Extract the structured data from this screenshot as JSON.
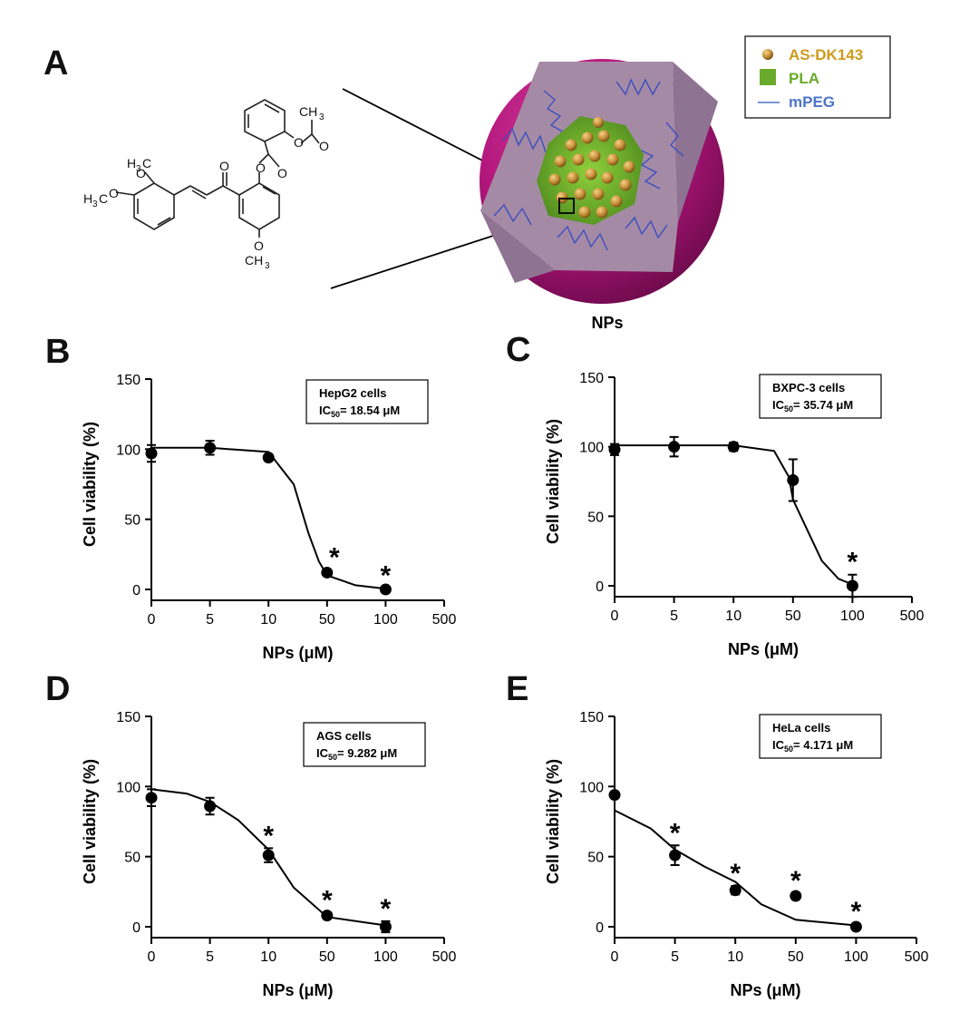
{
  "panel_a": {
    "letter": "A",
    "legend": [
      {
        "label": "AS-DK143",
        "color": "#d09a1c"
      },
      {
        "label": "PLA",
        "color": "#6aaa2a"
      },
      {
        "label": "mPEG",
        "color": "#4d74c8"
      }
    ],
    "particle_label": "NPs",
    "molecule_labels": {
      "ch3_top": "CH",
      "ch3_top_sub": "3",
      "h3c_1": "H",
      "h3c_1_sub": "3",
      "h3c_1_end": "C",
      "h3c_2": "H",
      "h3c_2_sub": "3",
      "h3c_2_end": "C",
      "och3_bottom": "CH",
      "och3_bottom_sub": "3"
    },
    "colors": {
      "shell": "#b0157a",
      "core": "#6fb12b",
      "wedge": "#a58aa6",
      "bead": "#c89038",
      "zigzag": "#3a4fbf"
    }
  },
  "chart_data": [
    {
      "panel": "B",
      "type": "scatter",
      "title": "HepG2 cells",
      "ic50_label": "IC",
      "ic50_sub": "50",
      "ic50_value": "= 18.54 μM",
      "xlabel": "NPs (μM)",
      "ylabel": "Cell viability (%)",
      "xticks": [
        "0",
        "5",
        "10",
        "50",
        "100",
        "500"
      ],
      "yticks": [
        "0",
        "50",
        "100",
        "150"
      ],
      "ylim": [
        0,
        150
      ],
      "points": [
        {
          "x": "0",
          "y": 97,
          "err": 6,
          "star": false
        },
        {
          "x": "5",
          "y": 101,
          "err": 5,
          "star": false
        },
        {
          "x": "10",
          "y": 94,
          "err": 2,
          "star": false
        },
        {
          "x": "50",
          "y": 12,
          "err": 2,
          "star": true
        },
        {
          "x": "100",
          "y": 0,
          "err": 1,
          "star": true
        }
      ],
      "curve": [
        [
          0,
          101
        ],
        [
          5,
          101
        ],
        [
          10,
          98
        ],
        [
          20,
          75
        ],
        [
          30,
          40
        ],
        [
          40,
          20
        ],
        [
          50,
          10
        ],
        [
          70,
          3
        ],
        [
          100,
          0.5
        ]
      ]
    },
    {
      "panel": "C",
      "type": "scatter",
      "title": "BXPC-3 cells",
      "ic50_label": "IC",
      "ic50_sub": "50",
      "ic50_value": "= 35.74 μM",
      "xlabel": "NPs (μM)",
      "ylabel": "Cell viability (%)",
      "xticks": [
        "0",
        "5",
        "10",
        "50",
        "100",
        "500"
      ],
      "yticks": [
        "0",
        "50",
        "100",
        "150"
      ],
      "ylim": [
        0,
        150
      ],
      "points": [
        {
          "x": "0",
          "y": 98,
          "err": 4,
          "star": false
        },
        {
          "x": "5",
          "y": 100,
          "err": 7,
          "star": false
        },
        {
          "x": "10",
          "y": 100,
          "err": 3,
          "star": false
        },
        {
          "x": "50",
          "y": 76,
          "err": 15,
          "star": false
        },
        {
          "x": "100",
          "y": 0,
          "err": 8,
          "star": true
        }
      ],
      "curve": [
        [
          0,
          101
        ],
        [
          10,
          101
        ],
        [
          30,
          97
        ],
        [
          45,
          78
        ],
        [
          50,
          62
        ],
        [
          60,
          38
        ],
        [
          70,
          18
        ],
        [
          85,
          5
        ],
        [
          100,
          1
        ]
      ]
    },
    {
      "panel": "D",
      "type": "scatter",
      "title": "AGS cells",
      "ic50_label": "IC",
      "ic50_sub": "50",
      "ic50_value": "= 9.282 μM",
      "xlabel": "NPs (μM)",
      "ylabel": "Cell viability (%)",
      "xticks": [
        "0",
        "5",
        "10",
        "50",
        "100",
        "500"
      ],
      "yticks": [
        "0",
        "50",
        "100",
        "150"
      ],
      "ylim": [
        0,
        150
      ],
      "points": [
        {
          "x": "0",
          "y": 92,
          "err": 6,
          "star": false
        },
        {
          "x": "5",
          "y": 86,
          "err": 6,
          "star": false
        },
        {
          "x": "10",
          "y": 51,
          "err": 5,
          "star": true
        },
        {
          "x": "50",
          "y": 8,
          "err": 2,
          "star": true
        },
        {
          "x": "100",
          "y": 0,
          "err": 4,
          "star": true
        }
      ],
      "curve": [
        [
          0,
          98
        ],
        [
          3,
          95
        ],
        [
          5,
          89
        ],
        [
          7,
          76
        ],
        [
          10,
          55
        ],
        [
          20,
          28
        ],
        [
          50,
          7
        ],
        [
          100,
          1
        ]
      ]
    },
    {
      "panel": "E",
      "type": "scatter",
      "title": "HeLa cells",
      "ic50_label": "IC",
      "ic50_sub": "50",
      "ic50_value": "= 4.171 μM",
      "xlabel": "NPs (μM)",
      "ylabel": "Cell viability (%)",
      "xticks": [
        "0",
        "5",
        "10",
        "50",
        "100",
        "500"
      ],
      "yticks": [
        "0",
        "50",
        "100",
        "150"
      ],
      "ylim": [
        0,
        150
      ],
      "points": [
        {
          "x": "0",
          "y": 94,
          "err": 2,
          "star": false
        },
        {
          "x": "5",
          "y": 51,
          "err": 7,
          "star": true
        },
        {
          "x": "10",
          "y": 26,
          "err": 3,
          "star": true
        },
        {
          "x": "50",
          "y": 22,
          "err": 2,
          "star": true
        },
        {
          "x": "100",
          "y": 0,
          "err": 2,
          "star": true
        }
      ],
      "curve": [
        [
          0,
          83
        ],
        [
          3,
          70
        ],
        [
          5,
          55
        ],
        [
          7,
          43
        ],
        [
          10,
          32
        ],
        [
          20,
          16
        ],
        [
          50,
          5
        ],
        [
          100,
          1
        ]
      ]
    }
  ]
}
